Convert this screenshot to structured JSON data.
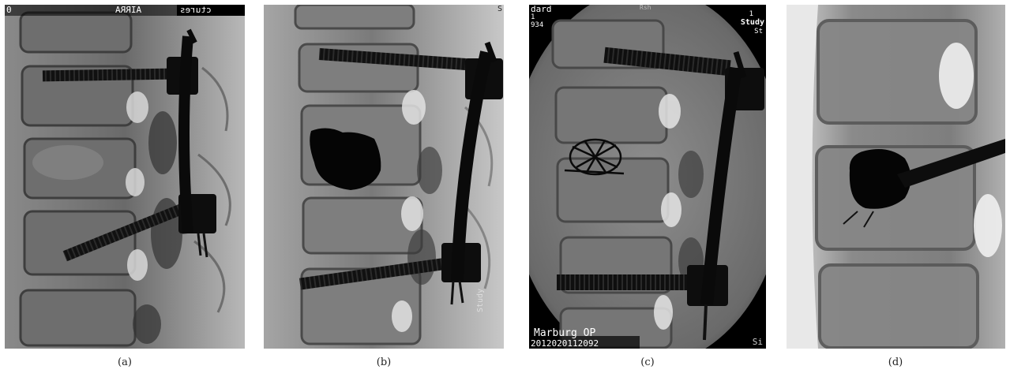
{
  "figure": {
    "panels": [
      {
        "id": "a",
        "caption": "(a)",
        "overlays": {
          "top_left": "0",
          "top_center": "AIRRA",
          "top_right": "ctures"
        }
      },
      {
        "id": "b",
        "caption": "(b)",
        "overlays": {
          "top_right": "S",
          "right_vertical": "Study"
        }
      },
      {
        "id": "c",
        "caption": "(c)",
        "overlays": {
          "top_left_1": "dard",
          "top_left_2": "1",
          "top_left_3": "934",
          "top_center": "Rsh",
          "top_right_1": "1",
          "top_right_2": "Study",
          "top_right_3": "St",
          "bottom_left_1": "Marburg OP",
          "bottom_left_2": "2012020112092",
          "bottom_right": "Si"
        }
      },
      {
        "id": "d",
        "caption": "(d)",
        "overlays": {}
      }
    ]
  }
}
